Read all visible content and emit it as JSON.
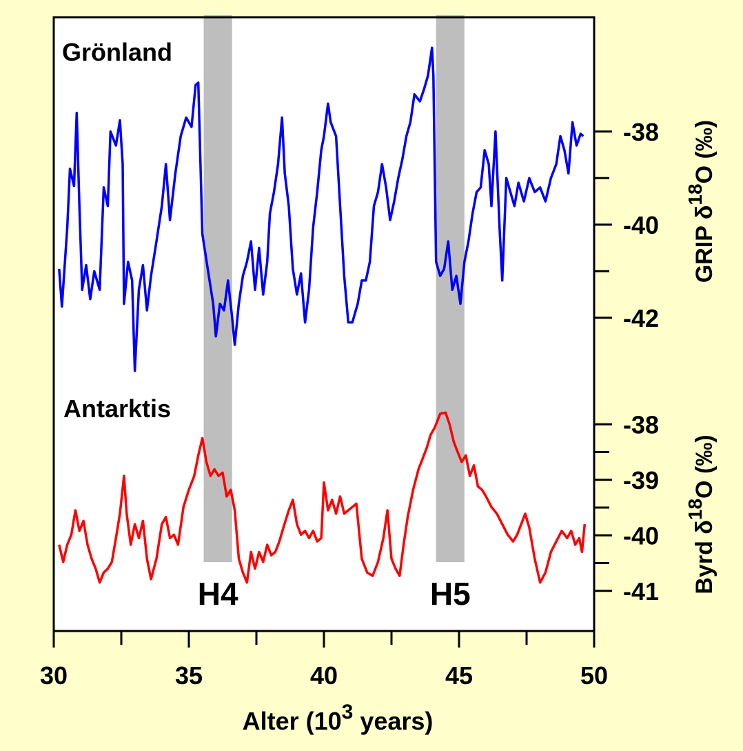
{
  "chart_data": {
    "type": "line",
    "xlim": [
      30,
      50
    ],
    "xticks": [
      30,
      35,
      40,
      45,
      50
    ],
    "xminorticks": [
      32.5,
      37.5,
      42.5,
      47.5
    ],
    "xlabel": [
      "Alter (10",
      "3",
      " years)"
    ],
    "bands": [
      {
        "label": "H4",
        "x": [
          35.55,
          36.6
        ]
      },
      {
        "label": "H5",
        "x": [
          44.15,
          45.2
        ]
      }
    ],
    "band_color": "#bebebe",
    "series": [
      {
        "name": "Grönland",
        "color": "#0000ff",
        "ylabel": [
          "GRIP δ",
          "18",
          "O (‰)"
        ],
        "ylim": [
          -35.5,
          -43.5
        ],
        "yticks": [
          -38,
          -40,
          -42
        ],
        "yminorticks": [
          -39,
          -41
        ],
        "x": [
          30.2,
          30.3,
          30.5,
          30.6,
          30.75,
          30.85,
          30.95,
          31.05,
          31.2,
          31.35,
          31.5,
          31.7,
          31.85,
          32.0,
          32.1,
          32.3,
          32.45,
          32.55,
          32.6,
          32.75,
          32.9,
          33.0,
          33.15,
          33.3,
          33.45,
          33.6,
          33.8,
          34.0,
          34.15,
          34.3,
          34.5,
          34.7,
          34.9,
          35.1,
          35.25,
          35.35,
          35.5,
          35.7,
          35.9,
          36.0,
          36.15,
          36.3,
          36.45,
          36.6,
          36.7,
          36.85,
          37.0,
          37.15,
          37.3,
          37.45,
          37.6,
          37.75,
          37.9,
          38.0,
          38.15,
          38.3,
          38.45,
          38.55,
          38.7,
          38.85,
          39.0,
          39.15,
          39.3,
          39.45,
          39.6,
          39.75,
          39.9,
          40.0,
          40.15,
          40.25,
          40.45,
          40.6,
          40.75,
          40.9,
          41.05,
          41.25,
          41.4,
          41.55,
          41.7,
          41.85,
          42.0,
          42.15,
          42.3,
          42.45,
          42.6,
          42.75,
          42.9,
          43.05,
          43.2,
          43.35,
          43.55,
          43.7,
          43.85,
          44.0,
          44.05,
          44.15,
          44.3,
          44.45,
          44.6,
          44.75,
          44.9,
          45.05,
          45.2,
          45.35,
          45.5,
          45.65,
          45.8,
          45.95,
          46.1,
          46.2,
          46.35,
          46.5,
          46.6,
          46.75,
          46.9,
          47.05,
          47.2,
          47.4,
          47.6,
          47.8,
          48.0,
          48.2,
          48.4,
          48.6,
          48.75,
          48.9,
          49.05,
          49.2,
          49.35,
          49.5,
          49.6
        ],
        "values": [
          -40.95,
          -41.76,
          -40.06,
          -38.8,
          -39.17,
          -37.6,
          -39.6,
          -41.4,
          -40.87,
          -41.6,
          -41.0,
          -41.4,
          -39.2,
          -39.6,
          -38.0,
          -38.3,
          -37.76,
          -38.7,
          -41.7,
          -40.8,
          -41.2,
          -43.14,
          -41.4,
          -40.87,
          -41.84,
          -41.1,
          -40.36,
          -39.6,
          -38.7,
          -39.9,
          -38.9,
          -38.1,
          -37.7,
          -37.9,
          -37.0,
          -36.95,
          -40.2,
          -40.95,
          -41.7,
          -42.4,
          -41.7,
          -41.84,
          -41.2,
          -41.98,
          -42.58,
          -41.7,
          -41.1,
          -40.8,
          -40.36,
          -41.4,
          -40.5,
          -41.5,
          -40.8,
          -39.76,
          -39.3,
          -38.7,
          -37.7,
          -38.9,
          -39.6,
          -40.95,
          -41.5,
          -41.05,
          -42.1,
          -41.4,
          -40.06,
          -39.3,
          -38.4,
          -38.1,
          -37.4,
          -37.8,
          -38.1,
          -39.6,
          -41.1,
          -42.1,
          -42.1,
          -41.7,
          -41.2,
          -41.2,
          -40.8,
          -39.6,
          -39.3,
          -38.7,
          -39.2,
          -39.9,
          -39.5,
          -39.0,
          -38.6,
          -38.1,
          -37.8,
          -37.2,
          -37.35,
          -37.1,
          -36.8,
          -36.2,
          -36.8,
          -40.8,
          -41.1,
          -40.95,
          -40.36,
          -41.4,
          -41.1,
          -41.7,
          -40.8,
          -40.36,
          -39.76,
          -39.3,
          -39.2,
          -38.4,
          -38.7,
          -39.6,
          -38.0,
          -40.06,
          -41.2,
          -39.0,
          -39.3,
          -39.6,
          -39.1,
          -39.5,
          -39.0,
          -39.3,
          -39.2,
          -39.5,
          -39.0,
          -38.7,
          -38.1,
          -38.4,
          -38.9,
          -37.8,
          -38.3,
          -38.05,
          -38.1
        ]
      },
      {
        "name": "Antarktis",
        "color": "#ff0000",
        "ylabel": [
          "Byrd δ",
          "18",
          "O (‰)"
        ],
        "ylim": [
          -37.5,
          -41.5
        ],
        "yticks": [
          -38,
          -39,
          -40,
          -41
        ],
        "yminorticks": [
          -38.5,
          -39.5,
          -40.5
        ],
        "x": [
          30.2,
          30.35,
          30.5,
          30.65,
          30.8,
          30.95,
          31.1,
          31.25,
          31.4,
          31.55,
          31.7,
          31.85,
          32.0,
          32.15,
          32.3,
          32.45,
          32.6,
          32.7,
          32.85,
          33.0,
          33.15,
          33.3,
          33.45,
          33.6,
          33.8,
          34.0,
          34.15,
          34.3,
          34.45,
          34.6,
          34.8,
          35.0,
          35.2,
          35.35,
          35.5,
          35.65,
          35.8,
          35.95,
          36.1,
          36.25,
          36.4,
          36.55,
          36.7,
          36.85,
          37.0,
          37.15,
          37.3,
          37.45,
          37.6,
          37.75,
          37.9,
          38.05,
          38.2,
          38.35,
          38.5,
          38.7,
          38.85,
          39.0,
          39.15,
          39.3,
          39.45,
          39.6,
          39.75,
          39.9,
          40.0,
          40.15,
          40.3,
          40.45,
          40.6,
          40.75,
          40.9,
          41.05,
          41.2,
          41.4,
          41.6,
          41.8,
          42.0,
          42.2,
          42.35,
          42.5,
          42.65,
          42.8,
          42.95,
          43.1,
          43.3,
          43.5,
          43.65,
          43.8,
          43.95,
          44.1,
          44.3,
          44.5,
          44.65,
          44.8,
          44.95,
          45.1,
          45.25,
          45.4,
          45.55,
          45.7,
          45.85,
          46.0,
          46.2,
          46.4,
          46.6,
          46.8,
          47.0,
          47.15,
          47.3,
          47.45,
          47.6,
          47.8,
          48.0,
          48.2,
          48.4,
          48.6,
          48.8,
          49.0,
          49.15,
          49.3,
          49.45,
          49.55,
          49.65
        ],
        "values": [
          -40.17,
          -40.48,
          -40.17,
          -39.99,
          -39.55,
          -39.92,
          -39.74,
          -40.17,
          -40.42,
          -40.6,
          -40.85,
          -40.67,
          -40.6,
          -40.48,
          -40.05,
          -39.61,
          -38.93,
          -39.61,
          -40.17,
          -39.8,
          -40.05,
          -39.74,
          -40.42,
          -40.79,
          -40.42,
          -39.8,
          -39.67,
          -40.05,
          -39.99,
          -40.17,
          -39.49,
          -39.18,
          -38.93,
          -38.56,
          -38.25,
          -38.68,
          -38.93,
          -38.81,
          -38.93,
          -38.87,
          -39.3,
          -39.18,
          -39.55,
          -40.42,
          -40.67,
          -40.85,
          -40.3,
          -40.6,
          -40.3,
          -40.48,
          -40.17,
          -40.36,
          -40.3,
          -40.11,
          -39.86,
          -39.55,
          -39.36,
          -39.8,
          -39.99,
          -39.92,
          -40.05,
          -39.92,
          -40.11,
          -40.05,
          -39.05,
          -39.55,
          -39.36,
          -39.61,
          -39.3,
          -39.61,
          -39.55,
          -39.49,
          -39.43,
          -40.42,
          -40.67,
          -40.73,
          -40.48,
          -40.05,
          -39.55,
          -40.42,
          -40.6,
          -40.73,
          -40.17,
          -39.67,
          -39.18,
          -38.81,
          -38.62,
          -38.43,
          -38.19,
          -38.06,
          -37.81,
          -37.79,
          -38.0,
          -38.31,
          -38.5,
          -38.68,
          -38.56,
          -38.93,
          -38.74,
          -39.12,
          -39.18,
          -39.3,
          -39.49,
          -39.61,
          -39.8,
          -39.99,
          -40.11,
          -39.99,
          -39.8,
          -39.61,
          -39.86,
          -40.42,
          -40.85,
          -40.67,
          -40.3,
          -40.11,
          -39.92,
          -40.05,
          -39.92,
          -40.17,
          -40.05,
          -40.3,
          -39.8
        ]
      }
    ]
  }
}
